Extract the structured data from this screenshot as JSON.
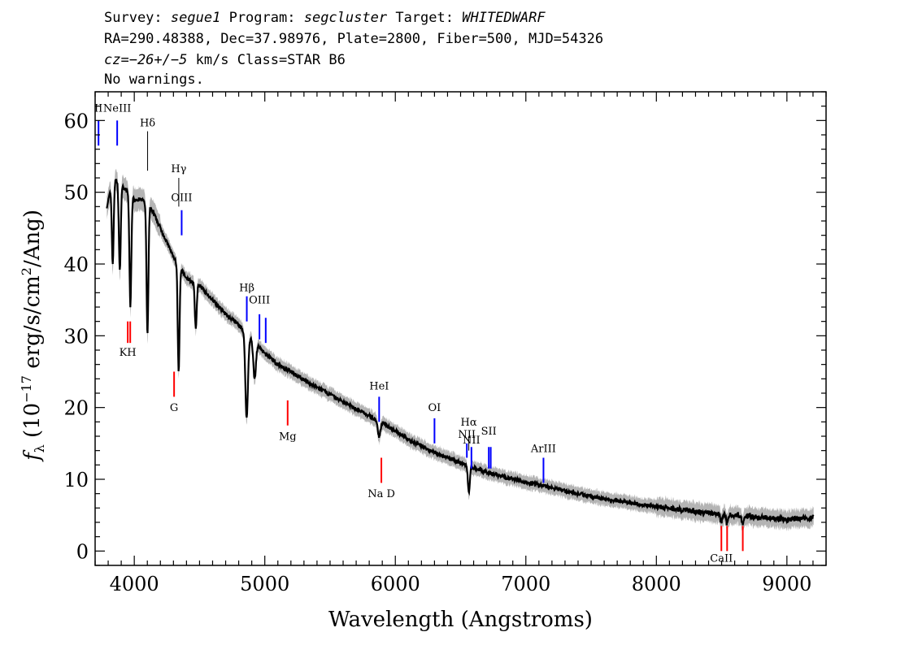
{
  "header": {
    "line1": {
      "survey_label": "Survey:",
      "survey": "segue1",
      "program_label": "Program:",
      "program": "segcluster",
      "target_label": "Target:",
      "target": "WHITEDWARF"
    },
    "line2": "RA=290.48388, Dec=37.98976, Plate=2800, Fiber=500, MJD=54326",
    "line3": {
      "cz": "cz=−26+/−5",
      "rest": " km/s Class=STAR B6"
    },
    "line4": "No warnings."
  },
  "chart_data": {
    "type": "line",
    "xlabel": "Wavelength (Angstroms)",
    "ylabel": "f_λ (10^-17 erg/s/cm^2/Ang)",
    "xlim": [
      3700,
      9300
    ],
    "ylim": [
      -2,
      64
    ],
    "xticks": [
      4000,
      5000,
      6000,
      7000,
      8000,
      9000
    ],
    "yticks": [
      0,
      10,
      20,
      30,
      40,
      50,
      60
    ],
    "colors": {
      "spectrum": "#000000",
      "error": "#b4b4b4",
      "emission": "#0000ff",
      "absorption": "#ff0000",
      "balmer": "#000000"
    },
    "series": [
      {
        "continuum": [
          [
            3790,
            48
          ],
          [
            3840,
            52
          ],
          [
            3900,
            51
          ],
          [
            3950,
            50
          ],
          [
            4000,
            49
          ],
          [
            4050,
            49
          ],
          [
            4100,
            48.5
          ],
          [
            4150,
            47
          ],
          [
            4200,
            45
          ],
          [
            4250,
            43
          ],
          [
            4300,
            41
          ],
          [
            4350,
            39.5
          ],
          [
            4400,
            38
          ],
          [
            4450,
            37.5
          ],
          [
            4500,
            37
          ],
          [
            4600,
            35
          ],
          [
            4700,
            33
          ],
          [
            4800,
            31.5
          ],
          [
            4900,
            29.5
          ],
          [
            5000,
            27.5
          ],
          [
            5100,
            26
          ],
          [
            5200,
            25
          ],
          [
            5300,
            23.8
          ],
          [
            5400,
            22.8
          ],
          [
            5500,
            21.8
          ],
          [
            5600,
            20.8
          ],
          [
            5700,
            19.8
          ],
          [
            5800,
            18.8
          ],
          [
            5900,
            17.8
          ],
          [
            6000,
            16.8
          ],
          [
            6100,
            15.5
          ],
          [
            6200,
            14.6
          ],
          [
            6300,
            13.8
          ],
          [
            6400,
            13
          ],
          [
            6500,
            12.3
          ],
          [
            6600,
            11.6
          ],
          [
            6700,
            11
          ],
          [
            6800,
            10.5
          ],
          [
            7000,
            9.6
          ],
          [
            7200,
            8.8
          ],
          [
            7400,
            8
          ],
          [
            7600,
            7.3
          ],
          [
            7800,
            6.7
          ],
          [
            8000,
            6.2
          ],
          [
            8200,
            5.7
          ],
          [
            8400,
            5.3
          ],
          [
            8600,
            5
          ],
          [
            8800,
            4.7
          ],
          [
            9000,
            4.4
          ],
          [
            9200,
            4.6
          ]
        ],
        "absorption_dips": [
          [
            3835,
            40
          ],
          [
            3889,
            39
          ],
          [
            3970,
            34
          ],
          [
            4101,
            30
          ],
          [
            4340,
            25
          ],
          [
            4471,
            31
          ],
          [
            4861,
            18.5
          ],
          [
            4922,
            24
          ],
          [
            5876,
            16
          ],
          [
            6563,
            8
          ],
          [
            8498,
            4
          ],
          [
            8542,
            3.8
          ],
          [
            8662,
            3.8
          ]
        ]
      }
    ],
    "line_markers": [
      {
        "label": "NeIII",
        "x": 3869,
        "color": "#0000ff",
        "y1": 56.5,
        "y2": 60,
        "label_y": 61.2
      },
      {
        "label": "Hδ",
        "x": 4102,
        "color": "#000000",
        "y1": 53,
        "y2": 58.5,
        "label_y": 59.2
      },
      {
        "label": "Hγ",
        "x": 4341,
        "color": "#000000",
        "y1": 48,
        "y2": 52,
        "label_y": 52.8
      },
      {
        "label": "OIII",
        "x": 4363,
        "color": "#0000ff",
        "y1": 44,
        "y2": 47.5,
        "label_y": 48.8
      },
      {
        "label": "Hβ",
        "x": 4862,
        "color": "#0000ff",
        "y1": 32,
        "y2": 35.5,
        "label_y": 36.2
      },
      {
        "label": "OIII",
        "x": 4959,
        "color": "#0000ff",
        "y1": 29.5,
        "y2": 33,
        "label_y": 34.5
      },
      {
        "label": "",
        "x": 5007,
        "color": "#0000ff",
        "y1": 29,
        "y2": 32.5,
        "label_y": 0
      },
      {
        "label": "KH",
        "x": 3950,
        "color": "#ff0000",
        "y1": 29,
        "y2": 32,
        "label_y": 27.2
      },
      {
        "label": "",
        "x": 3969,
        "color": "#ff0000",
        "y1": 29,
        "y2": 32,
        "label_y": 0
      },
      {
        "label": "G",
        "x": 4305,
        "color": "#ff0000",
        "y1": 21.5,
        "y2": 25,
        "label_y": 19.5
      },
      {
        "label": "Mg",
        "x": 5175,
        "color": "#ff0000",
        "y1": 17.5,
        "y2": 21,
        "label_y": 15.5
      },
      {
        "label": "HeI",
        "x": 5876,
        "color": "#0000ff",
        "y1": 18,
        "y2": 21.5,
        "label_y": 22.5
      },
      {
        "label": "Na D",
        "x": 5893,
        "color": "#ff0000",
        "y1": 9.5,
        "y2": 13,
        "label_y": 7.5
      },
      {
        "label": "OI",
        "x": 6300,
        "color": "#0000ff",
        "y1": 15,
        "y2": 18.5,
        "label_y": 19.5
      },
      {
        "label": "NII",
        "x": 6548,
        "color": "#0000ff",
        "y1": 13,
        "y2": 15,
        "label_y": 15.8
      },
      {
        "label": "Hα",
        "x": 6563,
        "color": "#000000",
        "y1": 14,
        "y2": 16,
        "label_y": 17.5
      },
      {
        "label": "NII",
        "x": 6583,
        "color": "#0000ff",
        "y1": 11.5,
        "y2": 14.5,
        "label_y": 15
      },
      {
        "label": "SII",
        "x": 6716,
        "color": "#0000ff",
        "y1": 11.5,
        "y2": 14.5,
        "label_y": 16.2
      },
      {
        "label": "",
        "x": 6731,
        "color": "#0000ff",
        "y1": 11.5,
        "y2": 14.5,
        "label_y": 0
      },
      {
        "label": "ArIII",
        "x": 7135,
        "color": "#0000ff",
        "y1": 9.5,
        "y2": 13,
        "label_y": 13.8
      },
      {
        "label": "CaII",
        "x": 8498,
        "color": "#ff0000",
        "y1": 0,
        "y2": 3.5,
        "label_y": -1.5
      },
      {
        "label": "",
        "x": 8542,
        "color": "#ff0000",
        "y1": 0,
        "y2": 3.5,
        "label_y": 0
      },
      {
        "label": "",
        "x": 8662,
        "color": "#ff0000",
        "y1": 0,
        "y2": 3.5,
        "label_y": 0
      },
      {
        "label": "II",
        "x": 3726,
        "color": "#0000ff",
        "y1": 56.5,
        "y2": 60,
        "label_y": 61.2
      }
    ]
  }
}
